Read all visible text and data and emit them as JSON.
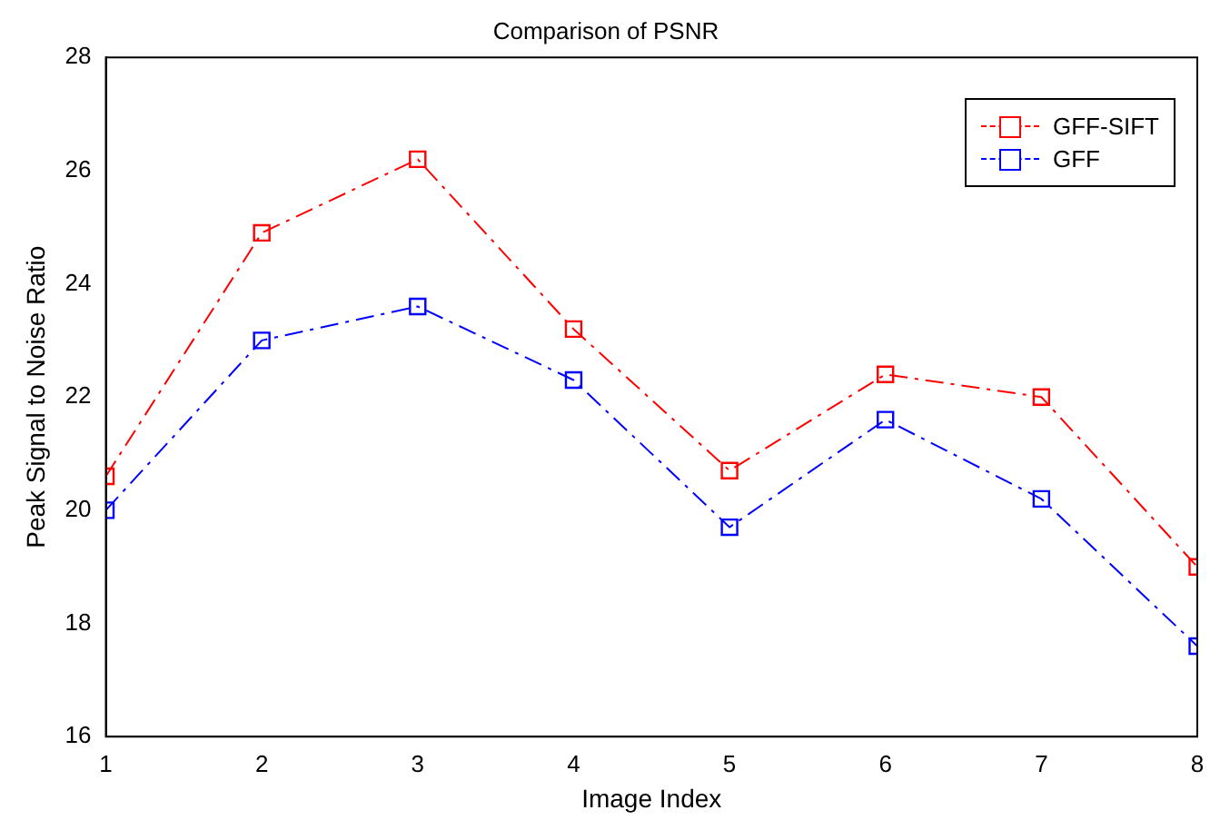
{
  "chart_data": {
    "type": "line",
    "title": "Comparison of PSNR",
    "xlabel": "Image Index",
    "ylabel": "Peak Signal to Noise Ratio",
    "x": [
      1,
      2,
      3,
      4,
      5,
      6,
      7,
      8
    ],
    "series": [
      {
        "name": "GFF-SIFT",
        "color": "#ff0000",
        "values": [
          20.6,
          24.9,
          26.2,
          23.2,
          20.7,
          22.4,
          22.0,
          19.0
        ]
      },
      {
        "name": "GFF",
        "color": "#0000ff",
        "values": [
          20.0,
          23.0,
          23.6,
          22.3,
          19.7,
          21.6,
          20.2,
          17.6
        ]
      }
    ],
    "xlim": [
      1,
      8
    ],
    "xticks": [
      1,
      2,
      3,
      4,
      5,
      6,
      7,
      8
    ],
    "ylim": [
      16,
      28
    ],
    "yticks": [
      16,
      18,
      20,
      22,
      24,
      26,
      28
    ],
    "grid": false,
    "legend": "top right",
    "marker": "square",
    "line_style": "dashed"
  }
}
